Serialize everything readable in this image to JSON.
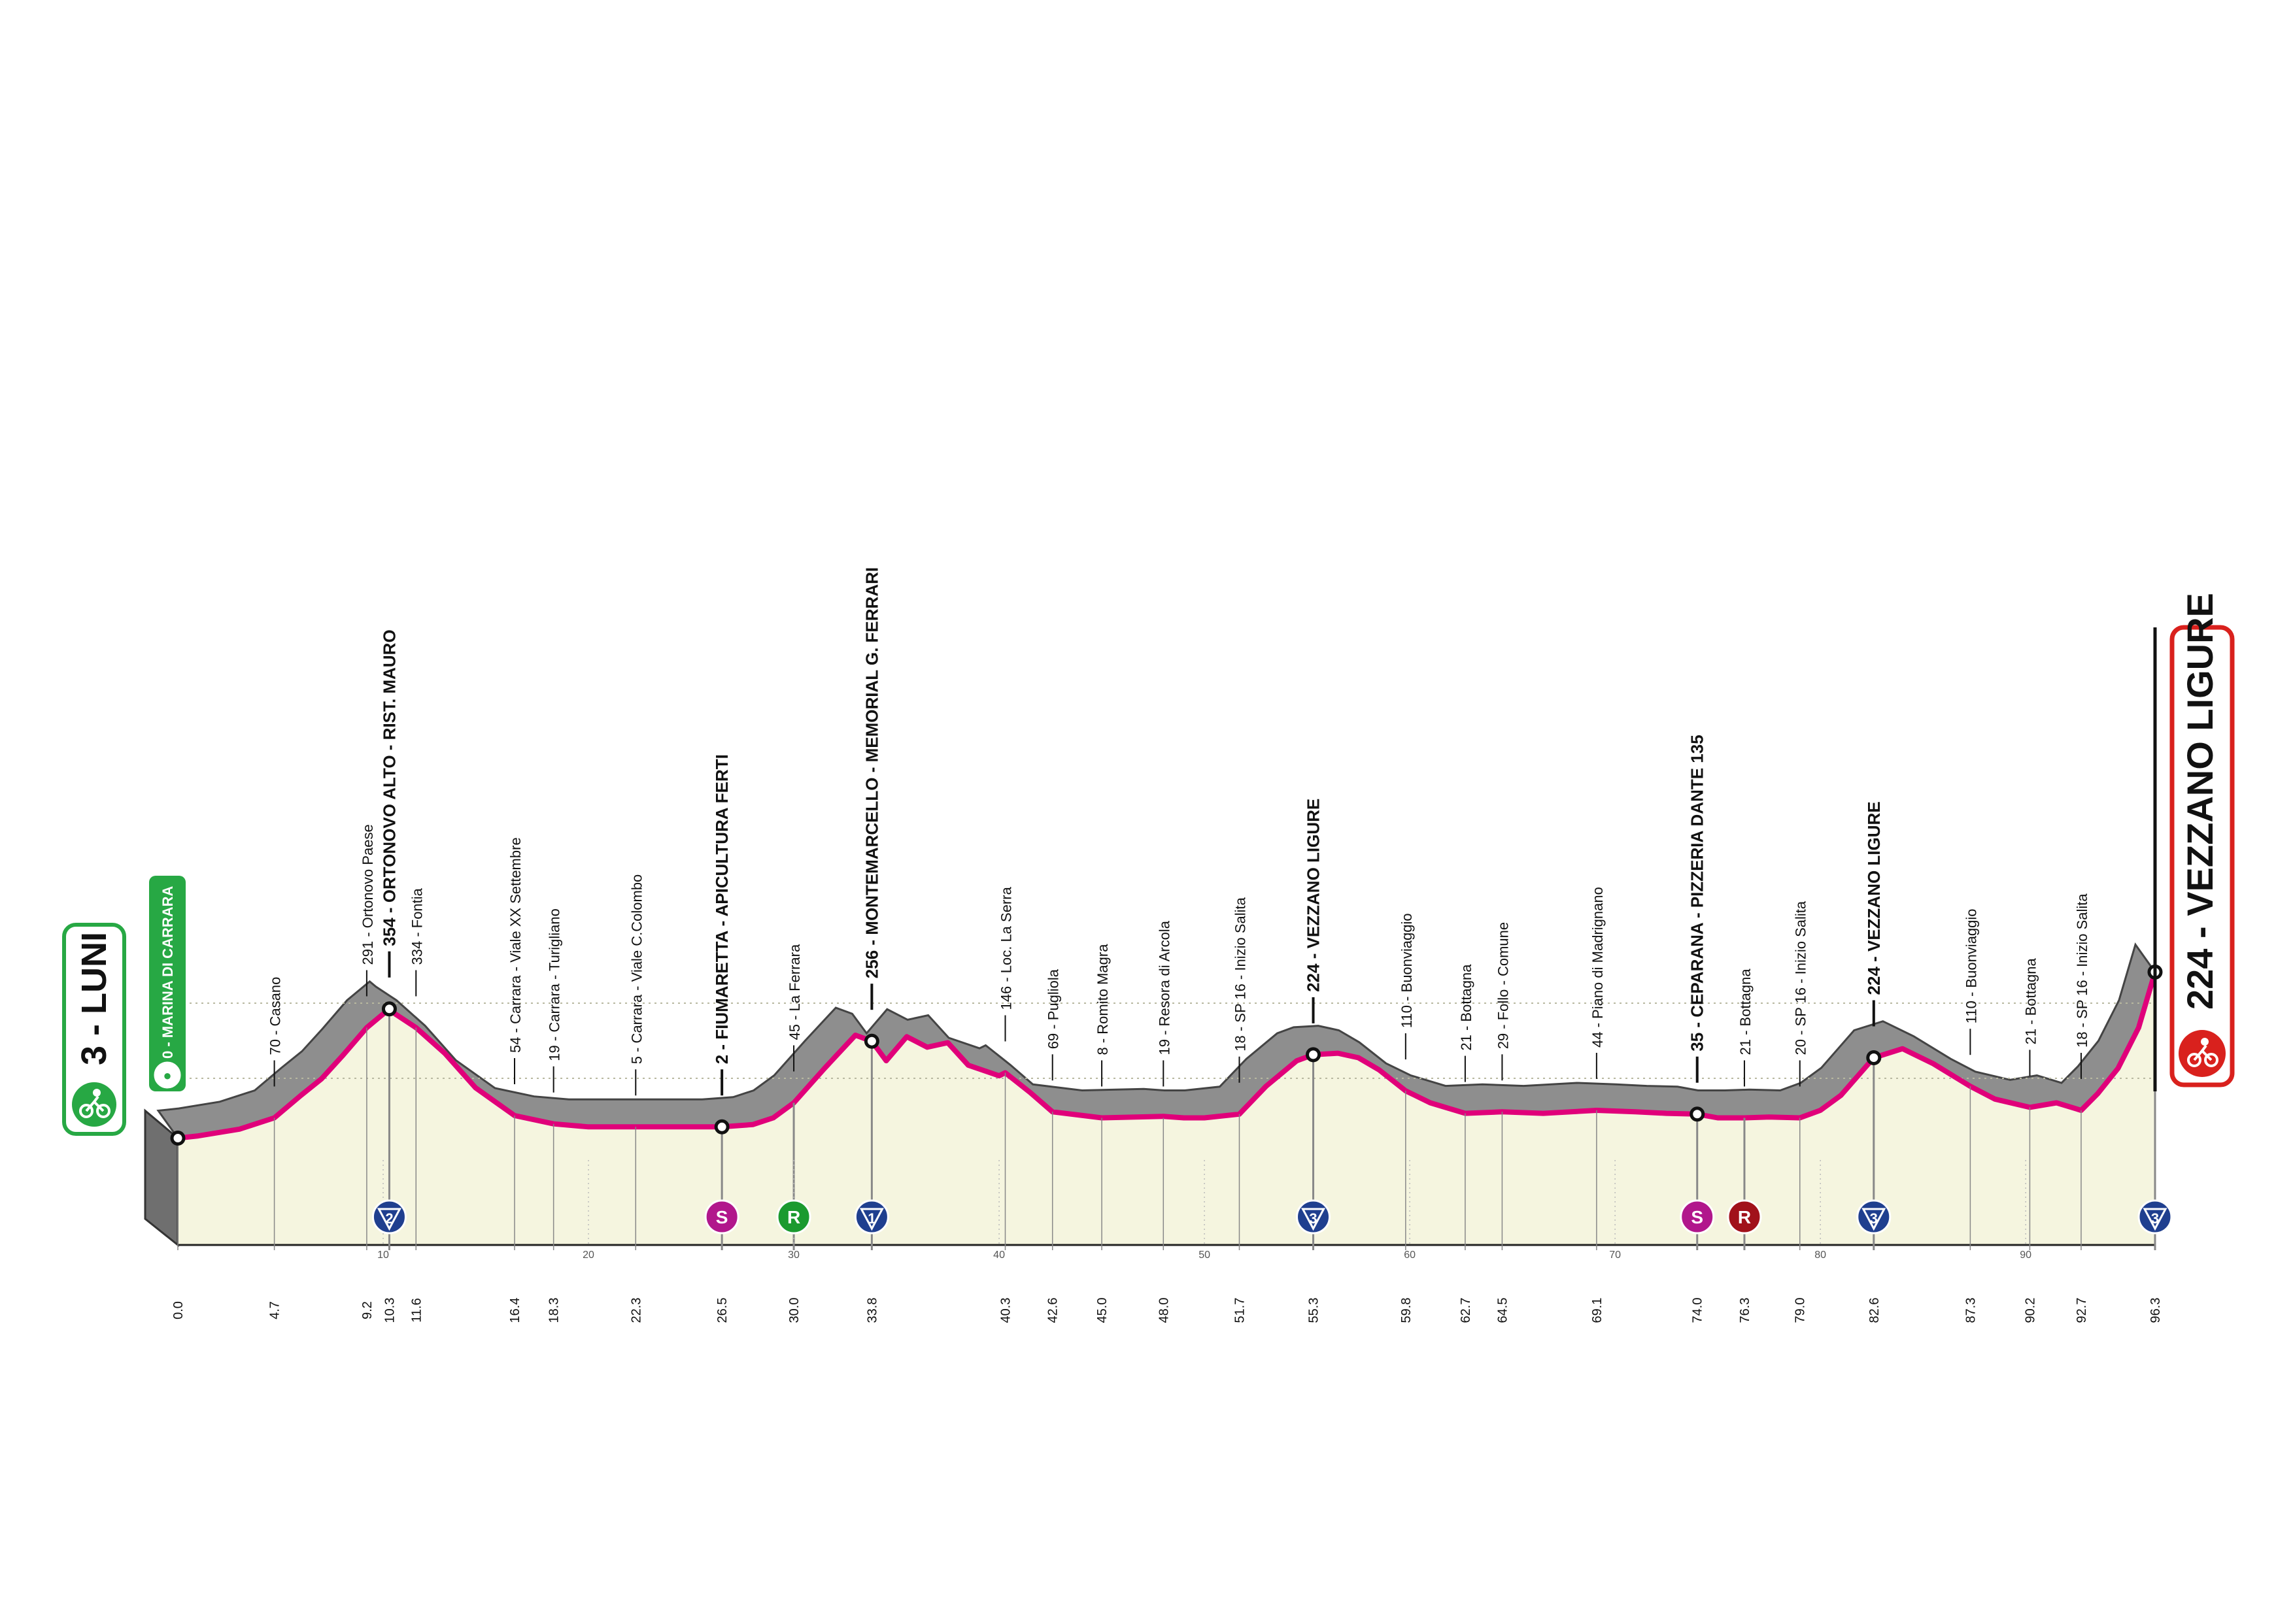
{
  "colors": {
    "road": "#8e8e8e",
    "road_dark": "#6f6f6f",
    "profile_fill": "#f5f5df",
    "route": "#e0007a",
    "start_green": "#27a844",
    "finish_red": "#d9211d",
    "climb_blue": "#1f3f8f",
    "sprint_magenta": "#b1178c",
    "sprint_green": "#1b9a2f",
    "intergiro_red": "#a1111a"
  },
  "start": {
    "label": "3 - LUNI",
    "neutral_label": "0 - MARINA DI CARRARA",
    "icon": "cyclist-icon"
  },
  "finish": {
    "label": "224 - VEZZANO LIGURE",
    "icon": "cyclist-icon"
  },
  "chart_data": {
    "type": "area",
    "title": "",
    "xlabel": "",
    "ylabel": "",
    "xlim": [
      0,
      96.3
    ],
    "ylim": [
      -160,
      360
    ],
    "profile": {
      "x": [
        0,
        1,
        3,
        4.7,
        6,
        7,
        8,
        9.2,
        10.3,
        10.6,
        11.6,
        13,
        14.5,
        16.4,
        18.3,
        20,
        22.3,
        24,
        25.5,
        26.5,
        28,
        29,
        30,
        31.5,
        33,
        33.8,
        34.5,
        35.5,
        36.5,
        37.5,
        38.5,
        40,
        40.3,
        41.5,
        42.6,
        45,
        48,
        49,
        50,
        51.7,
        53,
        54.5,
        55.3,
        56.5,
        57.5,
        58.5,
        59.8,
        61,
        62.7,
        64.5,
        66.5,
        69.1,
        71,
        72.5,
        74,
        75,
        76.3,
        77.5,
        79,
        80,
        81,
        82.6,
        84,
        85.5,
        87.3,
        88.5,
        90.2,
        91.5,
        92.7,
        93.5,
        94.5,
        95.5,
        96.3
      ],
      "y": [
        3,
        6,
        15,
        30,
        60,
        82,
        112,
        150,
        175,
        168,
        150,
        116,
        70,
        33,
        22,
        18,
        18,
        18,
        18,
        18,
        21,
        30,
        50,
        96,
        140,
        132,
        106,
        138,
        124,
        130,
        100,
        86,
        90,
        64,
        38,
        30,
        32,
        30,
        30,
        35,
        72,
        106,
        114,
        116,
        110,
        94,
        66,
        50,
        36,
        38,
        36,
        40,
        38,
        36,
        35,
        30,
        30,
        31,
        30,
        40,
        60,
        110,
        122,
        102,
        72,
        55,
        44,
        50,
        40,
        62,
        96,
        150,
        224
      ]
    },
    "points": [
      {
        "km": "0.0",
        "x": 0.0,
        "label": "3 - LUNI",
        "alt": 3,
        "bold": false,
        "is_finish": false,
        "marker": ""
      },
      {
        "km": "4.7",
        "x": 4.7,
        "label": "70 - Casano",
        "alt": 30,
        "bold": false,
        "is_finish": false,
        "marker": ""
      },
      {
        "km": "9.2",
        "x": 9.2,
        "label": "291 - Ortonovo Paese",
        "alt": 150,
        "bold": false,
        "is_finish": false,
        "marker": ""
      },
      {
        "km": "10.3",
        "x": 10.3,
        "label": "354 - ORTONOVO ALTO - RIST. MAURO",
        "alt": 175,
        "bold": true,
        "is_finish": false,
        "marker": "climb-2"
      },
      {
        "km": "11.6",
        "x": 11.6,
        "label": "334 - Fontia",
        "alt": 150,
        "bold": false,
        "is_finish": false,
        "marker": ""
      },
      {
        "km": "16.4",
        "x": 16.4,
        "label": "54 - Carrara - Viale XX Settembre",
        "alt": 33,
        "bold": false,
        "is_finish": false,
        "marker": ""
      },
      {
        "km": "18.3",
        "x": 18.3,
        "label": "19 - Carrara - Turigliano",
        "alt": 22,
        "bold": false,
        "is_finish": false,
        "marker": ""
      },
      {
        "km": "22.3",
        "x": 22.3,
        "label": "5 - Carrara - Viale C.Colombo",
        "alt": 18,
        "bold": false,
        "is_finish": false,
        "marker": ""
      },
      {
        "km": "26.5",
        "x": 26.5,
        "label": "2 - FIUMARETTA - APICULTURA FERTI",
        "alt": 18,
        "bold": true,
        "is_finish": false,
        "marker": "sprint"
      },
      {
        "km": "30.0",
        "x": 30.0,
        "label": "45 - La Ferrara",
        "alt": 50,
        "bold": false,
        "is_finish": false,
        "marker": "sprint-r-green"
      },
      {
        "km": "33.8",
        "x": 33.8,
        "label": "256 - MONTEMARCELLO - MEMORIAL G. FERRARI",
        "alt": 132,
        "bold": true,
        "is_finish": false,
        "marker": "climb-1"
      },
      {
        "km": "40.3",
        "x": 40.3,
        "label": "146 - Loc. La Serra",
        "alt": 90,
        "bold": false,
        "is_finish": false,
        "marker": ""
      },
      {
        "km": "42.6",
        "x": 42.6,
        "label": "69 - Pugliola",
        "alt": 38,
        "bold": false,
        "is_finish": false,
        "marker": ""
      },
      {
        "km": "45.0",
        "x": 45.0,
        "label": "8 - Romito Magra",
        "alt": 30,
        "bold": false,
        "is_finish": false,
        "marker": ""
      },
      {
        "km": "48.0",
        "x": 48.0,
        "label": "19 - Resora di Arcola",
        "alt": 30,
        "bold": false,
        "is_finish": false,
        "marker": ""
      },
      {
        "km": "51.7",
        "x": 51.7,
        "label": "18 - SP 16 - Inizio Salita",
        "alt": 35,
        "bold": false,
        "is_finish": false,
        "marker": ""
      },
      {
        "km": "55.3",
        "x": 55.3,
        "label": "224 - VEZZANO LIGURE",
        "alt": 114,
        "bold": true,
        "is_finish": false,
        "marker": "climb-3"
      },
      {
        "km": "59.8",
        "x": 59.8,
        "label": "110 - Buonviaggio",
        "alt": 66,
        "bold": false,
        "is_finish": false,
        "marker": ""
      },
      {
        "km": "62.7",
        "x": 62.7,
        "label": "21 - Bottagna",
        "alt": 36,
        "bold": false,
        "is_finish": false,
        "marker": ""
      },
      {
        "km": "64.5",
        "x": 64.5,
        "label": "29 - Follo - Comune",
        "alt": 38,
        "bold": false,
        "is_finish": false,
        "marker": ""
      },
      {
        "km": "69.1",
        "x": 69.1,
        "label": "44 - Piano di Madrignano",
        "alt": 40,
        "bold": false,
        "is_finish": false,
        "marker": ""
      },
      {
        "km": "74.0",
        "x": 74.0,
        "label": "35 - CEPARANA - PIZZERIA DANTE 135",
        "alt": 35,
        "bold": true,
        "is_finish": false,
        "marker": "sprint"
      },
      {
        "km": "76.3",
        "x": 76.3,
        "label": "21 - Bottagna",
        "alt": 30,
        "bold": false,
        "is_finish": false,
        "marker": "sprint-r-red"
      },
      {
        "km": "79.0",
        "x": 79.0,
        "label": "20 - SP 16 - Inizio Salita",
        "alt": 30,
        "bold": false,
        "is_finish": false,
        "marker": ""
      },
      {
        "km": "82.6",
        "x": 82.6,
        "label": "224 - VEZZANO LIGURE",
        "alt": 110,
        "bold": true,
        "is_finish": false,
        "marker": "climb-3"
      },
      {
        "km": "87.3",
        "x": 87.3,
        "label": "110 - Buonviaggio",
        "alt": 72,
        "bold": false,
        "is_finish": false,
        "marker": ""
      },
      {
        "km": "90.2",
        "x": 90.2,
        "label": "21 - Bottagna",
        "alt": 44,
        "bold": false,
        "is_finish": false,
        "marker": ""
      },
      {
        "km": "92.7",
        "x": 92.7,
        "label": "18 - SP 16 - Inizio Salita",
        "alt": 40,
        "bold": false,
        "is_finish": false,
        "marker": ""
      },
      {
        "km": "96.3",
        "x": 96.3,
        "label": "224 - VEZZANO LIGURE",
        "alt": 224,
        "bold": false,
        "is_finish": true,
        "marker": "climb-3"
      }
    ],
    "km_ticks": [
      10,
      20,
      30,
      40,
      50,
      60,
      70,
      80,
      90
    ],
    "altitude_ticks": [
      100,
      200
    ],
    "markers_text": {
      "climb-1": "1",
      "climb-2": "2",
      "climb-3": "3",
      "sprint": "S",
      "sprint-r-green": "R",
      "sprint-r-red": "R"
    }
  }
}
